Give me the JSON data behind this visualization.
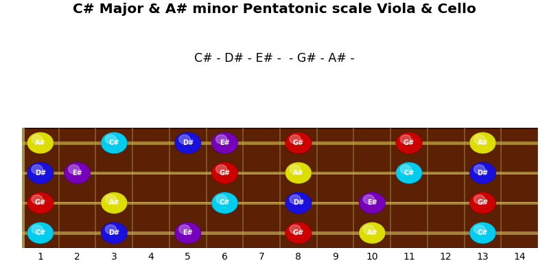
{
  "title": "C# Major & A# minor Pentatonic scale Viola & Cello",
  "subtitle": "C# - D# - E# -  - G# - A# -",
  "fret_min": 1,
  "fret_max": 14,
  "num_strings": 4,
  "bg_color": "#5c2005",
  "fret_color": "#8a7030",
  "string_color": "#c8b050",
  "notes": [
    {
      "string": 3,
      "fret": 1,
      "note": "A#",
      "color": "#dddd00"
    },
    {
      "string": 3,
      "fret": 3,
      "note": "C#",
      "color": "#00ccee"
    },
    {
      "string": 3,
      "fret": 5,
      "note": "D#",
      "color": "#1a10dd"
    },
    {
      "string": 3,
      "fret": 6,
      "note": "E#",
      "color": "#7700bb"
    },
    {
      "string": 3,
      "fret": 8,
      "note": "G#",
      "color": "#cc0000"
    },
    {
      "string": 3,
      "fret": 11,
      "note": "G#",
      "color": "#cc0000"
    },
    {
      "string": 3,
      "fret": 13,
      "note": "A#",
      "color": "#dddd00"
    },
    {
      "string": 2,
      "fret": 1,
      "note": "D#",
      "color": "#1a10dd"
    },
    {
      "string": 2,
      "fret": 2,
      "note": "E#",
      "color": "#7700bb"
    },
    {
      "string": 2,
      "fret": 6,
      "note": "G#",
      "color": "#cc0000"
    },
    {
      "string": 2,
      "fret": 8,
      "note": "A#",
      "color": "#dddd00"
    },
    {
      "string": 2,
      "fret": 11,
      "note": "C#",
      "color": "#00ccee"
    },
    {
      "string": 2,
      "fret": 13,
      "note": "D#",
      "color": "#1a10dd"
    },
    {
      "string": 1,
      "fret": 1,
      "note": "G#",
      "color": "#cc0000"
    },
    {
      "string": 1,
      "fret": 3,
      "note": "A#",
      "color": "#dddd00"
    },
    {
      "string": 1,
      "fret": 6,
      "note": "C#",
      "color": "#00ccee"
    },
    {
      "string": 1,
      "fret": 8,
      "note": "D#",
      "color": "#1a10dd"
    },
    {
      "string": 1,
      "fret": 10,
      "note": "E#",
      "color": "#7700bb"
    },
    {
      "string": 1,
      "fret": 13,
      "note": "G#",
      "color": "#cc0000"
    },
    {
      "string": 0,
      "fret": 1,
      "note": "C#",
      "color": "#00ccee"
    },
    {
      "string": 0,
      "fret": 3,
      "note": "D#",
      "color": "#1a10dd"
    },
    {
      "string": 0,
      "fret": 5,
      "note": "E#",
      "color": "#7700bb"
    },
    {
      "string": 0,
      "fret": 8,
      "note": "G#",
      "color": "#cc0000"
    },
    {
      "string": 0,
      "fret": 10,
      "note": "A#",
      "color": "#dddd00"
    },
    {
      "string": 0,
      "fret": 13,
      "note": "C#",
      "color": "#00ccee"
    }
  ]
}
